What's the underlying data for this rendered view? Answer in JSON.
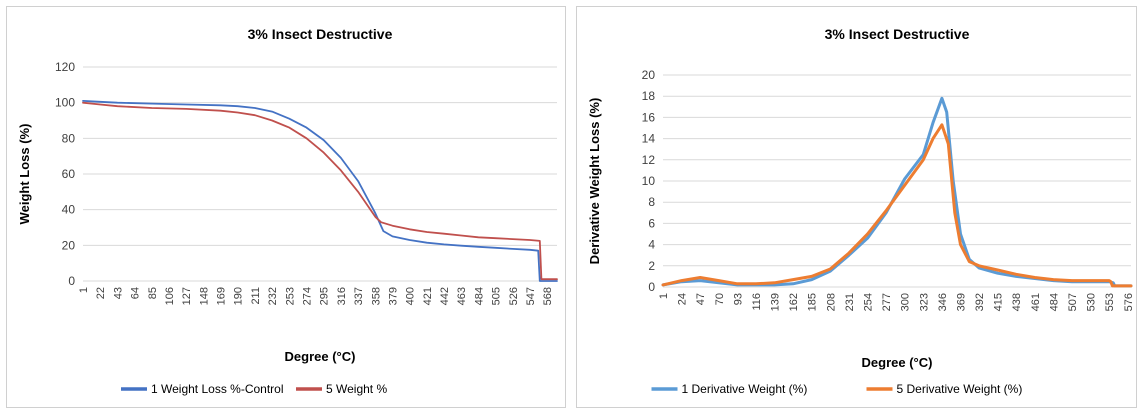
{
  "chart_data": [
    {
      "type": "line",
      "title": "3% Insect Destructive",
      "xlabel": "Degree (°C)",
      "ylabel": "Weight Loss (%)",
      "ylim": [
        0,
        120
      ],
      "yticks": [
        0,
        20,
        40,
        60,
        80,
        100,
        120
      ],
      "xlim": [
        1,
        580
      ],
      "xticks": [
        "1",
        "22",
        "43",
        "64",
        "85",
        "106",
        "127",
        "148",
        "169",
        "190",
        "211",
        "232",
        "253",
        "274",
        "295",
        "316",
        "337",
        "358",
        "379",
        "400",
        "421",
        "442",
        "463",
        "484",
        "505",
        "526",
        "547",
        "568"
      ],
      "grid": true,
      "legend": "bottom",
      "series": [
        {
          "name": "1 Weight Loss %-Control",
          "color": "#4472C4",
          "x": [
            1,
            22,
            43,
            85,
            127,
            169,
            190,
            211,
            232,
            253,
            274,
            295,
            316,
            337,
            358,
            368,
            379,
            400,
            421,
            442,
            463,
            484,
            505,
            526,
            547,
            557,
            559,
            580
          ],
          "y": [
            101,
            100.5,
            100,
            99.5,
            99,
            98.5,
            98,
            97,
            95,
            91,
            86,
            79,
            69,
            56,
            38,
            28,
            25,
            23,
            21.5,
            20.5,
            19.8,
            19.2,
            18.6,
            18,
            17.5,
            17,
            0,
            0
          ]
        },
        {
          "name": "5 Weight %",
          "color": "#C0504D",
          "x": [
            1,
            22,
            43,
            85,
            127,
            169,
            190,
            211,
            232,
            253,
            274,
            295,
            316,
            337,
            358,
            365,
            379,
            400,
            421,
            442,
            463,
            484,
            505,
            526,
            547,
            559,
            561,
            580
          ],
          "y": [
            100,
            99,
            98,
            97,
            96.5,
            95.5,
            94.5,
            93,
            90,
            86,
            80,
            72,
            62,
            50,
            36,
            33,
            31,
            29,
            27.5,
            26.5,
            25.5,
            24.5,
            24,
            23.5,
            23,
            22.5,
            1,
            1
          ]
        }
      ]
    },
    {
      "type": "line",
      "title": "3% Insect Destructive",
      "xlabel": "Degree (°C)",
      "ylabel": "Derivative Weight Loss (%)",
      "ylim": [
        0,
        20
      ],
      "yticks": [
        0,
        2,
        4,
        6,
        8,
        10,
        12,
        14,
        16,
        18,
        20
      ],
      "xlim": [
        1,
        580
      ],
      "xticks": [
        "1",
        "24",
        "47",
        "70",
        "93",
        "116",
        "139",
        "162",
        "185",
        "208",
        "231",
        "254",
        "277",
        "300",
        "323",
        "346",
        "369",
        "392",
        "415",
        "438",
        "461",
        "484",
        "507",
        "530",
        "553",
        "576"
      ],
      "grid": true,
      "legend": "bottom",
      "series": [
        {
          "name": "1 Derivative Weight (%)",
          "color": "#5B9BD5",
          "x": [
            1,
            24,
            47,
            70,
            93,
            116,
            139,
            162,
            185,
            208,
            231,
            254,
            277,
            300,
            323,
            335,
            346,
            352,
            360,
            369,
            380,
            392,
            415,
            438,
            461,
            484,
            507,
            530,
            553,
            558,
            560,
            580
          ],
          "y": [
            0.2,
            0.5,
            0.6,
            0.4,
            0.2,
            0.2,
            0.2,
            0.3,
            0.7,
            1.5,
            3.0,
            4.6,
            7.0,
            10.2,
            12.5,
            15.5,
            17.8,
            16.5,
            10.0,
            5.0,
            2.6,
            1.8,
            1.3,
            1.0,
            0.8,
            0.6,
            0.5,
            0.5,
            0.5,
            0.4,
            0.1,
            0.1
          ]
        },
        {
          "name": "5 Derivative Weight (%)",
          "color": "#ED7D31",
          "x": [
            1,
            24,
            47,
            70,
            93,
            116,
            139,
            162,
            185,
            208,
            231,
            254,
            277,
            300,
            323,
            335,
            346,
            354,
            362,
            369,
            380,
            392,
            415,
            438,
            461,
            484,
            507,
            530,
            553,
            555,
            557,
            580
          ],
          "y": [
            0.2,
            0.6,
            0.9,
            0.6,
            0.3,
            0.3,
            0.4,
            0.7,
            1.0,
            1.7,
            3.2,
            5.0,
            7.2,
            9.6,
            12.0,
            14.0,
            15.3,
            13.5,
            7.0,
            4.0,
            2.4,
            2.0,
            1.6,
            1.2,
            0.9,
            0.7,
            0.6,
            0.6,
            0.6,
            0.5,
            0.1,
            0.1
          ]
        }
      ]
    }
  ]
}
